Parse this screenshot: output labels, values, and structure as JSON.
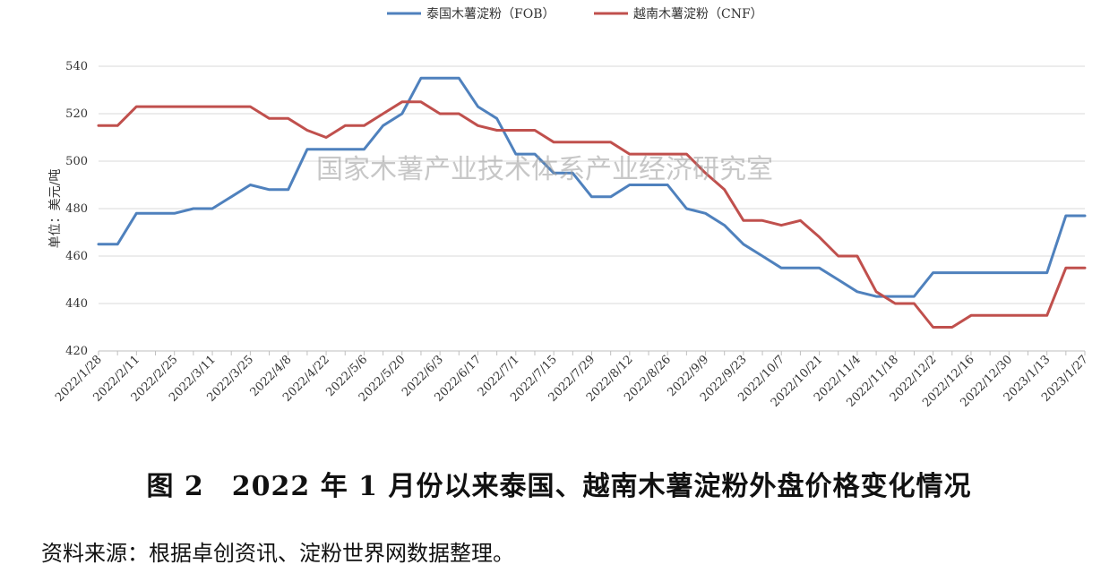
{
  "chart_data": {
    "type": "line",
    "x": [
      "2022/1/28",
      "2022/2/4",
      "2022/2/11",
      "2022/2/18",
      "2022/2/25",
      "2022/3/4",
      "2022/3/11",
      "2022/3/18",
      "2022/3/25",
      "2022/4/1",
      "2022/4/8",
      "2022/4/15",
      "2022/4/22",
      "2022/4/29",
      "2022/5/6",
      "2022/5/13",
      "2022/5/20",
      "2022/5/27",
      "2022/6/3",
      "2022/6/10",
      "2022/6/17",
      "2022/6/24",
      "2022/7/1",
      "2022/7/8",
      "2022/7/15",
      "2022/7/22",
      "2022/7/29",
      "2022/8/5",
      "2022/8/12",
      "2022/8/19",
      "2022/8/26",
      "2022/9/2",
      "2022/9/9",
      "2022/9/16",
      "2022/9/23",
      "2022/9/30",
      "2022/10/7",
      "2022/10/14",
      "2022/10/21",
      "2022/10/28",
      "2022/11/4",
      "2022/11/11",
      "2022/11/18",
      "2022/11/25",
      "2022/12/2",
      "2022/12/9",
      "2022/12/16",
      "2022/12/23",
      "2022/12/30",
      "2023/1/6",
      "2023/1/13",
      "2023/1/20",
      "2023/1/27"
    ],
    "xticks": [
      "2022/1/28",
      "2022/2/11",
      "2022/2/25",
      "2022/3/11",
      "2022/3/25",
      "2022/4/8",
      "2022/4/22",
      "2022/5/6",
      "2022/5/20",
      "2022/6/3",
      "2022/6/17",
      "2022/7/1",
      "2022/7/15",
      "2022/7/29",
      "2022/8/12",
      "2022/8/26",
      "2022/9/9",
      "2022/9/23",
      "2022/10/7",
      "2022/10/21",
      "2022/11/4",
      "2022/11/18",
      "2022/12/2",
      "2022/12/16",
      "2022/12/30",
      "2023/1/13",
      "2023/1/27"
    ],
    "series": [
      {
        "name": "泰国木薯淀粉（FOB）",
        "color": "#4f81bd",
        "values": [
          465,
          465,
          478,
          478,
          478,
          480,
          480,
          485,
          490,
          488,
          488,
          505,
          505,
          505,
          505,
          515,
          520,
          535,
          535,
          535,
          523,
          518,
          503,
          503,
          495,
          495,
          485,
          485,
          490,
          490,
          490,
          480,
          478,
          473,
          465,
          460,
          455,
          455,
          455,
          450,
          445,
          443,
          443,
          443,
          453,
          453,
          453,
          453,
          453,
          453,
          453,
          477,
          477
        ]
      },
      {
        "name": "越南木薯淀粉（CNF）",
        "color": "#c0504d",
        "values": [
          515,
          515,
          523,
          523,
          523,
          523,
          523,
          523,
          523,
          518,
          518,
          513,
          510,
          515,
          515,
          520,
          525,
          525,
          520,
          520,
          515,
          513,
          513,
          513,
          508,
          508,
          508,
          508,
          503,
          503,
          503,
          503,
          495,
          488,
          475,
          475,
          473,
          475,
          468,
          460,
          460,
          445,
          440,
          440,
          430,
          430,
          435,
          435,
          435,
          435,
          435,
          455,
          455
        ]
      }
    ],
    "ylabel": "单位：美元/吨",
    "ylim": [
      420,
      540
    ],
    "yticks": [
      420,
      440,
      460,
      480,
      500,
      520,
      540
    ],
    "grid": true,
    "legend": "top-center"
  },
  "watermark": "国家木薯产业技术体系产业经济研究室",
  "caption": "图 2　2022 年 1 月份以来泰国、越南木薯淀粉外盘价格变化情况",
  "source": "资料来源：根据卓创资讯、淀粉世界网数据整理。"
}
